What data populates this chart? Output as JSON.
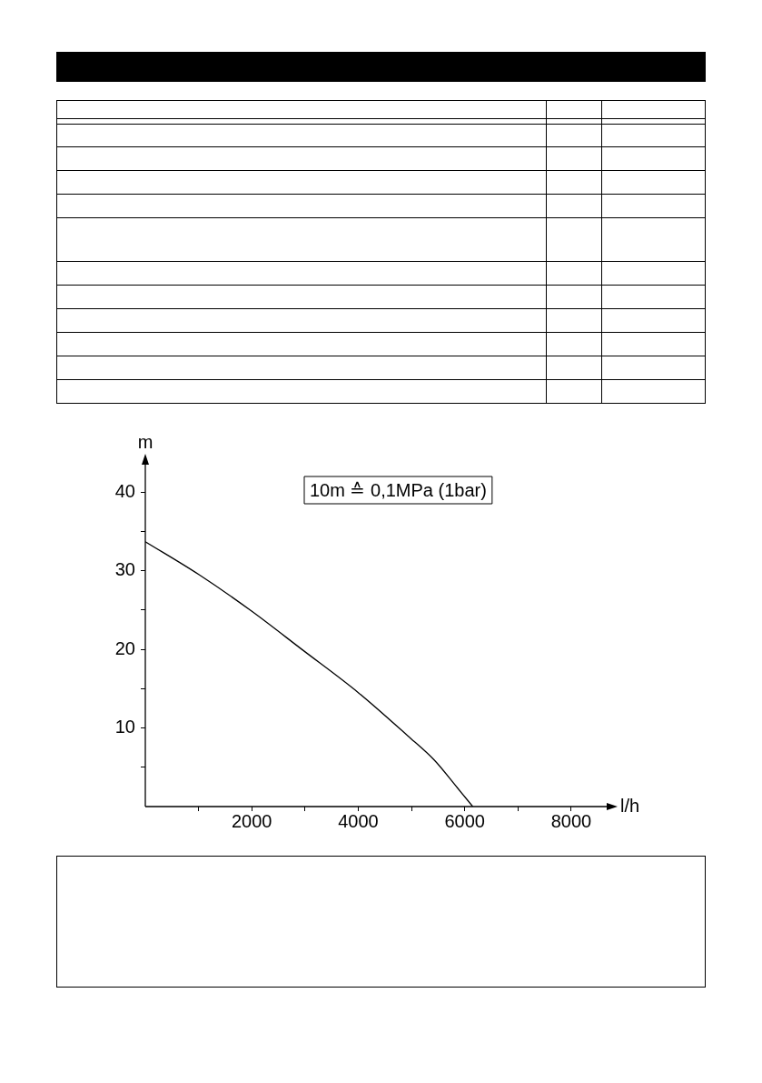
{
  "chart_data": {
    "type": "line",
    "xlabel": "l/h",
    "ylabel": "m",
    "annotations": [
      "10m ≙ 0,1MPa (1bar)"
    ],
    "xlim": [
      0,
      8700
    ],
    "ylim": [
      0,
      43.5
    ],
    "xticks": [
      {
        "value": 1000,
        "label": null
      },
      2000,
      {
        "value": 3000,
        "label": null
      },
      4000,
      {
        "value": 5000,
        "label": null
      },
      6000,
      {
        "value": 7000,
        "label": null
      },
      8000
    ],
    "yticks": [
      {
        "value": 5,
        "label": null
      },
      10,
      {
        "value": 15,
        "label": null
      },
      20,
      {
        "value": 25,
        "label": null
      },
      30,
      {
        "value": 35,
        "label": null
      },
      40
    ],
    "marker": "none",
    "series": [
      {
        "color": "#000000",
        "x": [
          0,
          1010,
          1990,
          2940,
          4000,
          4930,
          5430,
          5860,
          6150
        ],
        "values": [
          33.7,
          29.5,
          24.9,
          20.0,
          14.5,
          9.0,
          5.9,
          2.4,
          0
        ]
      }
    ]
  }
}
